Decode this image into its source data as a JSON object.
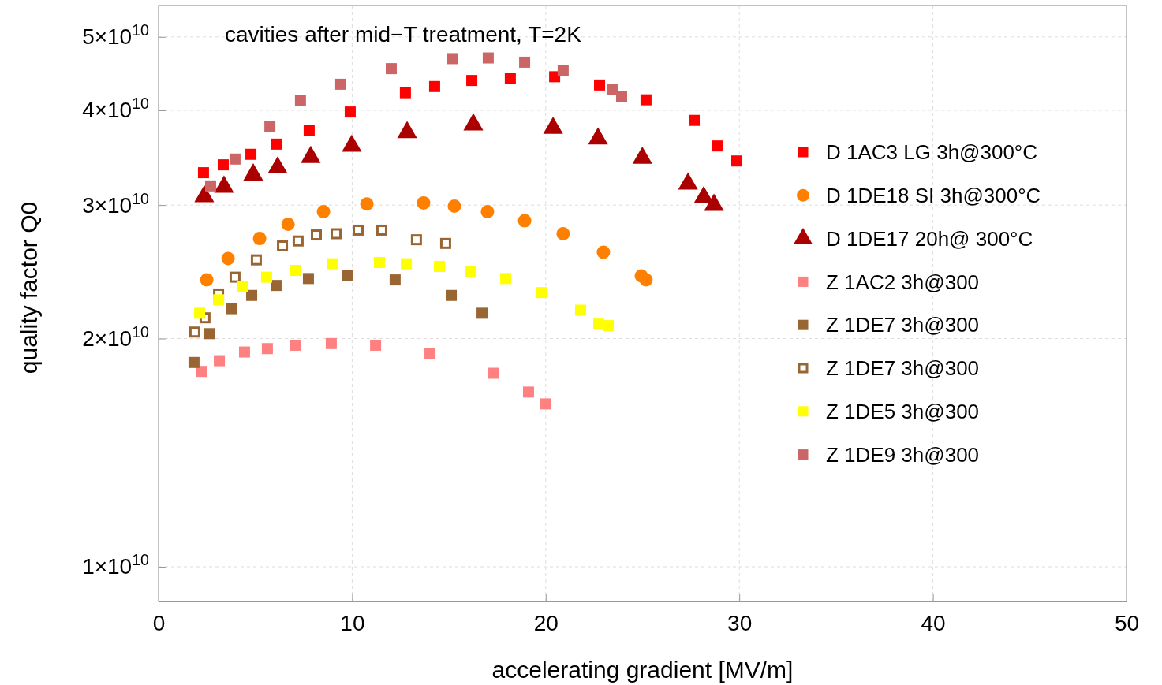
{
  "chart_data": {
    "type": "scatter",
    "title": "cavities after mid−T treatment, T=2K",
    "xlabel": "accelerating gradient [MV/m]",
    "ylabel": "quality factor Q0",
    "log": "y",
    "grid": true,
    "legend": "right",
    "xlim": [
      0,
      50
    ],
    "xticks": [
      0,
      10,
      20,
      30,
      40,
      50
    ],
    "ylim": [
      9000000000,
      55000000000
    ],
    "yticks": [
      {
        "value": 10000000000,
        "label": "1×10$^{10}$"
      },
      {
        "value": 20000000000,
        "label": "2×10$^{10}$"
      },
      {
        "value": 30000000000,
        "label": "3×10$^{10}$"
      },
      {
        "value": 40000000000,
        "label": "4×10$^{10}$"
      },
      {
        "value": 50000000000,
        "label": "5×10$^{10}$"
      }
    ],
    "series": [
      {
        "name": "D 1AC3 LG 3h@300°C",
        "color": "#ff0000",
        "marker": "square",
        "x": [
          2.32,
          3.34,
          4.77,
          6.11,
          7.78,
          9.9,
          12.75,
          14.26,
          16.18,
          18.17,
          20.46,
          22.78,
          25.18,
          27.67,
          28.85,
          29.87
        ],
        "values": [
          33100000000.0,
          33900000000.0,
          35000000000.0,
          36100000000.0,
          37600000000.0,
          39800000000.0,
          42200000000.0,
          43000000000.0,
          43800000000.0,
          44100000000.0,
          44300000000.0,
          43200000000.0,
          41300000000.0,
          38800000000.0,
          35900000000.0,
          34300000000.0
        ]
      },
      {
        "name": "D 1DE18 SI 3h@300°C",
        "color": "#ff7f00",
        "marker": "circle",
        "x": [
          2.49,
          3.59,
          5.22,
          6.69,
          8.52,
          10.76,
          13.69,
          15.28,
          16.99,
          18.91,
          20.9,
          22.98,
          24.94,
          25.18
        ],
        "values": [
          23900000000.0,
          25500000000.0,
          27100000000.0,
          28300000000.0,
          29400000000.0,
          30100000000.0,
          30200000000.0,
          29900000000.0,
          29400000000.0,
          28600000000.0,
          27500000000.0,
          26000000000.0,
          24200000000.0,
          23900000000.0
        ]
      },
      {
        "name": "D 1DE17 20h@ 300°C",
        "color": "#aa0000",
        "marker": "triangle",
        "x": [
          2.36,
          3.38,
          4.89,
          6.15,
          7.86,
          9.98,
          12.84,
          16.26,
          20.38,
          22.7,
          24.99,
          27.35,
          28.16,
          28.69
        ],
        "values": [
          30800000000.0,
          31700000000.0,
          32900000000.0,
          33600000000.0,
          34700000000.0,
          35900000000.0,
          37400000000.0,
          38300000000.0,
          37900000000.0,
          36700000000.0,
          34600000000.0,
          32000000000.0,
          30700000000.0,
          30000000000.0
        ]
      },
      {
        "name": "Z 1AC2 3h@300",
        "color": "#ff8080",
        "marker": "square",
        "x": [
          2.2,
          3.14,
          4.44,
          5.62,
          7.05,
          8.92,
          11.21,
          14.02,
          17.32,
          19.11,
          20.01
        ],
        "values": [
          18100000000.0,
          18700000000.0,
          19200000000.0,
          19400000000.0,
          19600000000.0,
          19700000000.0,
          19600000000.0,
          19100000000.0,
          18000000000.0,
          17000000000.0,
          16400000000.0
        ]
      },
      {
        "name": "Z 1DE7 3h@300",
        "color": "#996633",
        "marker": "square",
        "x": [
          1.83,
          2.61,
          3.79,
          4.81,
          6.07,
          7.74,
          9.74,
          12.22,
          15.12,
          16.71
        ],
        "values": [
          18600000000.0,
          20300000000.0,
          21900000000.0,
          22800000000.0,
          23500000000.0,
          24000000000.0,
          24200000000.0,
          23900000000.0,
          22800000000.0,
          21600000000.0
        ]
      },
      {
        "name": "Z 1DE7 3h@300",
        "color": "#996633",
        "marker": "square-open",
        "x": [
          1.87,
          2.4,
          3.1,
          3.95,
          5.05,
          6.4,
          7.21,
          8.15,
          9.17,
          10.31,
          11.53,
          13.32,
          14.83
        ],
        "values": [
          20400000000.0,
          21300000000.0,
          22900000000.0,
          24100000000.0,
          25400000000.0,
          26500000000.0,
          26900000000.0,
          27400000000.0,
          27500000000.0,
          27800000000.0,
          27800000000.0,
          27000000000.0,
          26700000000.0
        ]
      },
      {
        "name": "Z 1DE5 3h@300",
        "color": "#ffff00",
        "marker": "square",
        "x": [
          2.12,
          3.1,
          4.36,
          5.58,
          7.09,
          9.0,
          11.41,
          12.8,
          14.51,
          16.14,
          17.93,
          19.8,
          21.8,
          22.74,
          23.23
        ],
        "values": [
          21600000000.0,
          22500000000.0,
          23400000000.0,
          24100000000.0,
          24600000000.0,
          25100000000.0,
          25200000000.0,
          25100000000.0,
          24900000000.0,
          24500000000.0,
          24000000000.0,
          23000000000.0,
          21800000000.0,
          20900000000.0,
          20800000000.0
        ]
      },
      {
        "name": "Z 1DE9 3h@300",
        "color": "#cc6666",
        "marker": "square",
        "x": [
          2.69,
          3.95,
          5.75,
          7.33,
          9.41,
          12.02,
          15.2,
          17.03,
          18.91,
          20.9,
          23.43,
          23.92
        ],
        "values": [
          31800000000.0,
          34500000000.0,
          38100000000.0,
          41200000000.0,
          43300000000.0,
          45400000000.0,
          46800000000.0,
          46900000000.0,
          46300000000.0,
          45100000000.0,
          42600000000.0,
          41700000000.0
        ]
      }
    ]
  }
}
